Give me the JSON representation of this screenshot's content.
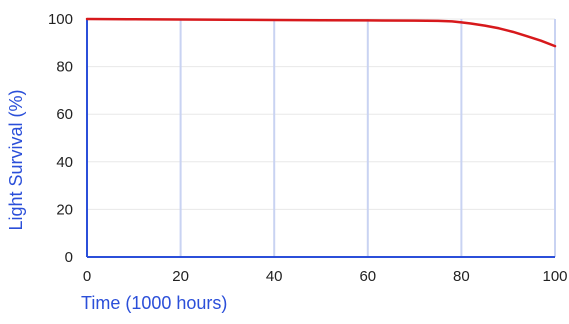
{
  "chart_data": {
    "type": "line",
    "title": "",
    "xlabel": "Time (1000 hours)",
    "ylabel": "Light Survival (%)",
    "xlim": [
      0,
      100
    ],
    "ylim": [
      0,
      100
    ],
    "x_ticks": [
      0,
      20,
      40,
      60,
      80,
      100
    ],
    "y_ticks": [
      0,
      20,
      40,
      60,
      80,
      100
    ],
    "grid": "vertical-major-and-horizontal",
    "legend": "none",
    "series": [
      {
        "color": "#d7191c",
        "points": [
          {
            "x": 0,
            "y": 100
          },
          {
            "x": 10,
            "y": 99.9
          },
          {
            "x": 20,
            "y": 99.8
          },
          {
            "x": 30,
            "y": 99.7
          },
          {
            "x": 40,
            "y": 99.6
          },
          {
            "x": 50,
            "y": 99.5
          },
          {
            "x": 60,
            "y": 99.4
          },
          {
            "x": 70,
            "y": 99.3
          },
          {
            "x": 75,
            "y": 99.2
          },
          {
            "x": 78,
            "y": 99.0
          },
          {
            "x": 80,
            "y": 98.6
          },
          {
            "x": 82,
            "y": 98.1
          },
          {
            "x": 85,
            "y": 97.2
          },
          {
            "x": 88,
            "y": 96.1
          },
          {
            "x": 91,
            "y": 94.6
          },
          {
            "x": 94,
            "y": 92.8
          },
          {
            "x": 97,
            "y": 90.9
          },
          {
            "x": 100,
            "y": 88.6
          }
        ]
      }
    ]
  },
  "colors": {
    "axis": "#2b4fd9",
    "axis_title": "#2b4fd9",
    "vertical_grid": "#c9d3f2",
    "horizontal_grid": "#e8e8e8",
    "tick_text": "#222222"
  }
}
